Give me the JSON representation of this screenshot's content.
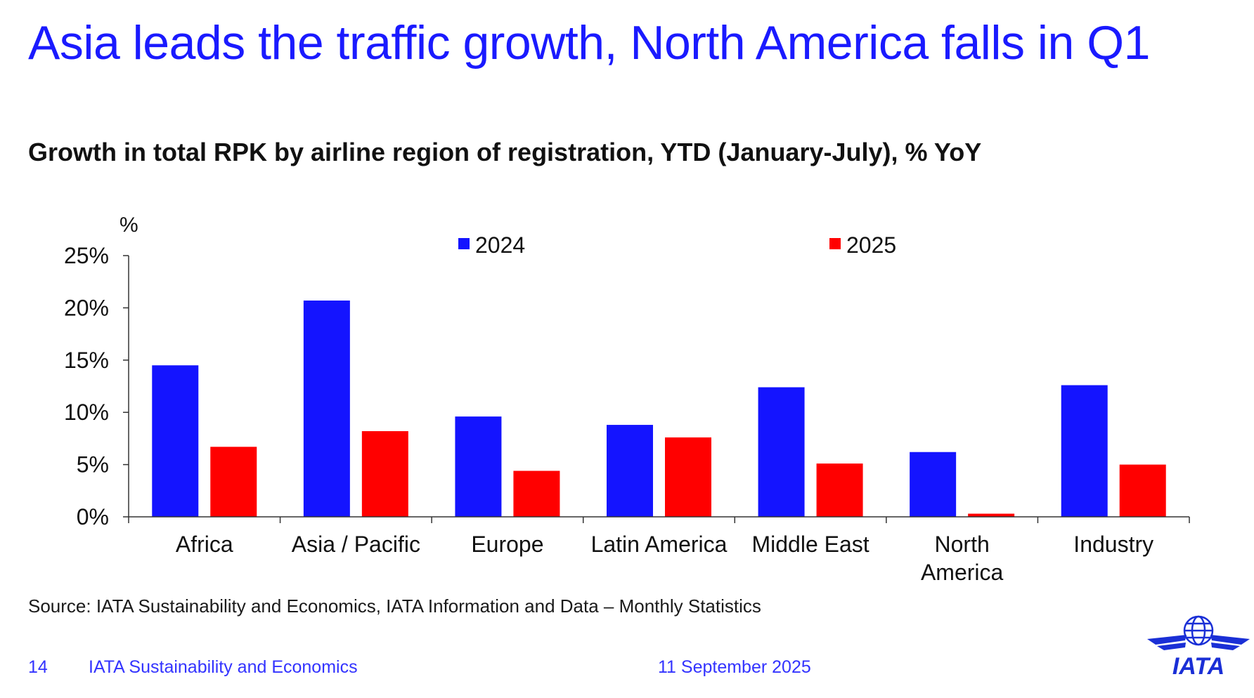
{
  "slide": {
    "title": "Asia leads the traffic growth, North America falls in Q1",
    "source": "Source: IATA Sustainability and Economics, IATA Information and Data – Monthly Statistics",
    "footer": {
      "page_number": "14",
      "organization": "IATA Sustainability and Economics",
      "date": "11 September 2025"
    },
    "logo_text": "IATA"
  },
  "colors": {
    "title": "#1a1aff",
    "series_2024": "#1414ff",
    "series_2025": "#ff0000",
    "footer": "#3333ff"
  },
  "chart_data": {
    "type": "bar",
    "title": "Growth in total RPK by airline region of registration, YTD (January-July), % YoY",
    "ylabel": "%",
    "xlabel": "",
    "categories": [
      "Africa",
      "Asia / Pacific",
      "Europe",
      "Latin America",
      "Middle East",
      "North America",
      "Industry"
    ],
    "series": [
      {
        "name": "2024",
        "color": "#1414ff",
        "values": [
          14.5,
          20.7,
          9.6,
          8.8,
          12.4,
          6.2,
          12.6
        ]
      },
      {
        "name": "2025",
        "color": "#ff0000",
        "values": [
          6.7,
          8.2,
          4.4,
          7.6,
          5.1,
          0.3,
          5.0
        ]
      }
    ],
    "ylim": [
      0,
      25
    ],
    "yticks": [
      0,
      5,
      10,
      15,
      20,
      25
    ],
    "ytick_labels": [
      "0%",
      "5%",
      "10%",
      "15%",
      "20%",
      "25%"
    ],
    "legend": "top-center",
    "grid": false
  }
}
